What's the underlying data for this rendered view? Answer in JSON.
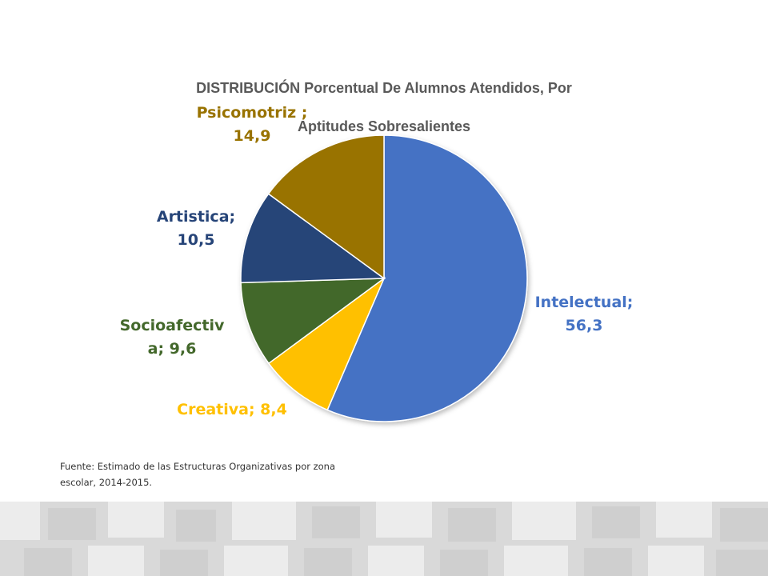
{
  "chart_data": {
    "type": "pie",
    "title": "DISTRIBUCIÓN Porcentual De Alumnos Atendidos, Por Aptitudes Sobresalientes",
    "slices": [
      {
        "label": "Intelectual;",
        "value_label": "56,3",
        "value": 56.3,
        "color": "#4472C4"
      },
      {
        "label": "Creativa;",
        "value_label": "8,4",
        "value": 8.4,
        "color": "#FFC000"
      },
      {
        "label": "Socioafectiv a;",
        "value_label": "9,6",
        "value": 9.6,
        "color": "#43682B"
      },
      {
        "label": "Artistica;",
        "value_label": "10,5",
        "value": 10.5,
        "color": "#264478"
      },
      {
        "label": "Psicomotriz ;",
        "value_label": "14,9",
        "value": 14.9,
        "color": "#997300"
      }
    ]
  },
  "labels": {
    "title_line1": "DISTRIBUCIÓN Porcentual De Alumnos Atendidos, Por",
    "title_line2": "Aptitudes Sobresalientes",
    "intelectual_1": "Intelectual;",
    "intelectual_2": "56,3",
    "creativa": "Creativa; 8,4",
    "socioafectiva_1": "Socioafectiv",
    "socioafectiva_2": "a; 9,6",
    "artistica_1": "Artistica;",
    "artistica_2": "10,5",
    "psicomotriz_1": "Psicomotriz ;",
    "psicomotriz_2": "14,9"
  },
  "source": {
    "line1": "Fuente: Estimado de las Estructuras Organizativas por zona",
    "line2": "escolar, 2014-2015."
  }
}
